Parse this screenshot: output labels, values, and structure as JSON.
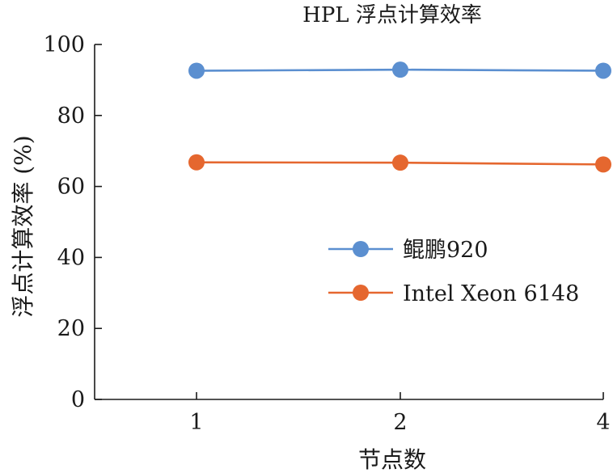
{
  "chart_data": {
    "type": "line",
    "title": "HPL 浮点计算效率",
    "xlabel": "节点数",
    "ylabel": "浮点计算效率 (%)",
    "categories": [
      "1",
      "2",
      "4"
    ],
    "ylim": [
      0,
      100
    ],
    "yticks": [
      0,
      20,
      40,
      60,
      80,
      100
    ],
    "grid": false,
    "legend_position": "center-right",
    "series": [
      {
        "name": "鲲鹏920",
        "color": "#5b8fd0",
        "values": [
          92.6,
          92.9,
          92.6
        ]
      },
      {
        "name": "Intel Xeon 6148",
        "color": "#e5672f",
        "values": [
          66.8,
          66.7,
          66.2
        ]
      }
    ]
  }
}
